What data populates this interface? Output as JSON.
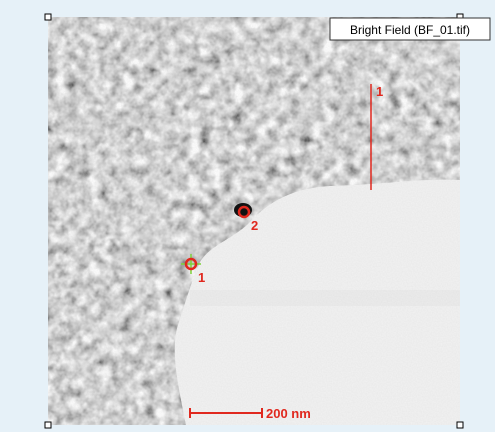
{
  "viewer": {
    "title": "Bright Field (BF_01.tif)",
    "markers": [
      {
        "label": "1"
      },
      {
        "label": "2"
      }
    ],
    "line_label": "1",
    "scale_bar": "200 nm"
  }
}
